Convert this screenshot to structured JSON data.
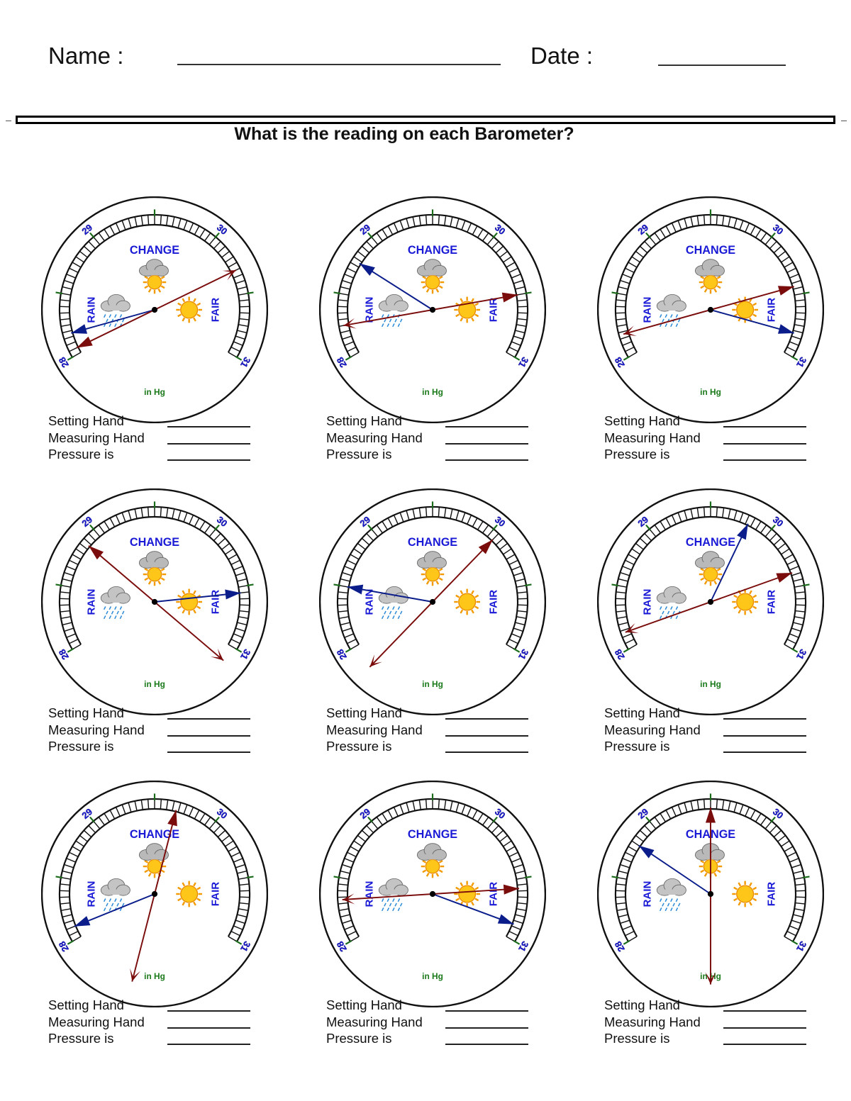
{
  "header": {
    "name_label": "Name :",
    "date_label": "Date :"
  },
  "worksheet": {
    "title": "What is the reading on each Barometer?"
  },
  "dial": {
    "labels": {
      "change": "CHANGE",
      "rain": "RAIN",
      "fair": "FAIR",
      "unit": "in Hg",
      "n28": "28",
      "n29": "29",
      "n30": "30",
      "n31": "31"
    },
    "scale_min": 28,
    "scale_max": 31,
    "colors": {
      "setting_hand": "#7a0c0c",
      "measuring_hand": "#0a1d8a",
      "label_blue": "#1a1ad6",
      "tick_green": "#1a6b1a",
      "unit_green": "#1a7a1a"
    },
    "icons": [
      "cloud-sun-icon",
      "rain-cloud-icon",
      "sun-icon"
    ]
  },
  "answer_rows": {
    "setting": "Setting Hand",
    "measuring": "Measuring Hand",
    "pressure": "Pressure is"
  },
  "barometers": [
    {
      "setting_hand": 28.05,
      "measuring_hand": 28.18
    },
    {
      "setting_hand": 30.5,
      "measuring_hand": 28.78
    },
    {
      "setting_hand": 30.43,
      "measuring_hand": 30.82
    },
    {
      "setting_hand": 28.88,
      "measuring_hand": 30.55
    },
    {
      "setting_hand": 30.05,
      "measuring_hand": 28.5
    },
    {
      "setting_hand": 30.38,
      "measuring_hand": 29.82
    },
    {
      "setting_hand": 29.68,
      "measuring_hand": 28.1
    },
    {
      "setting_hand": 30.58,
      "measuring_hand": 30.88
    },
    {
      "setting_hand": 29.5,
      "measuring_hand": 28.8
    }
  ]
}
